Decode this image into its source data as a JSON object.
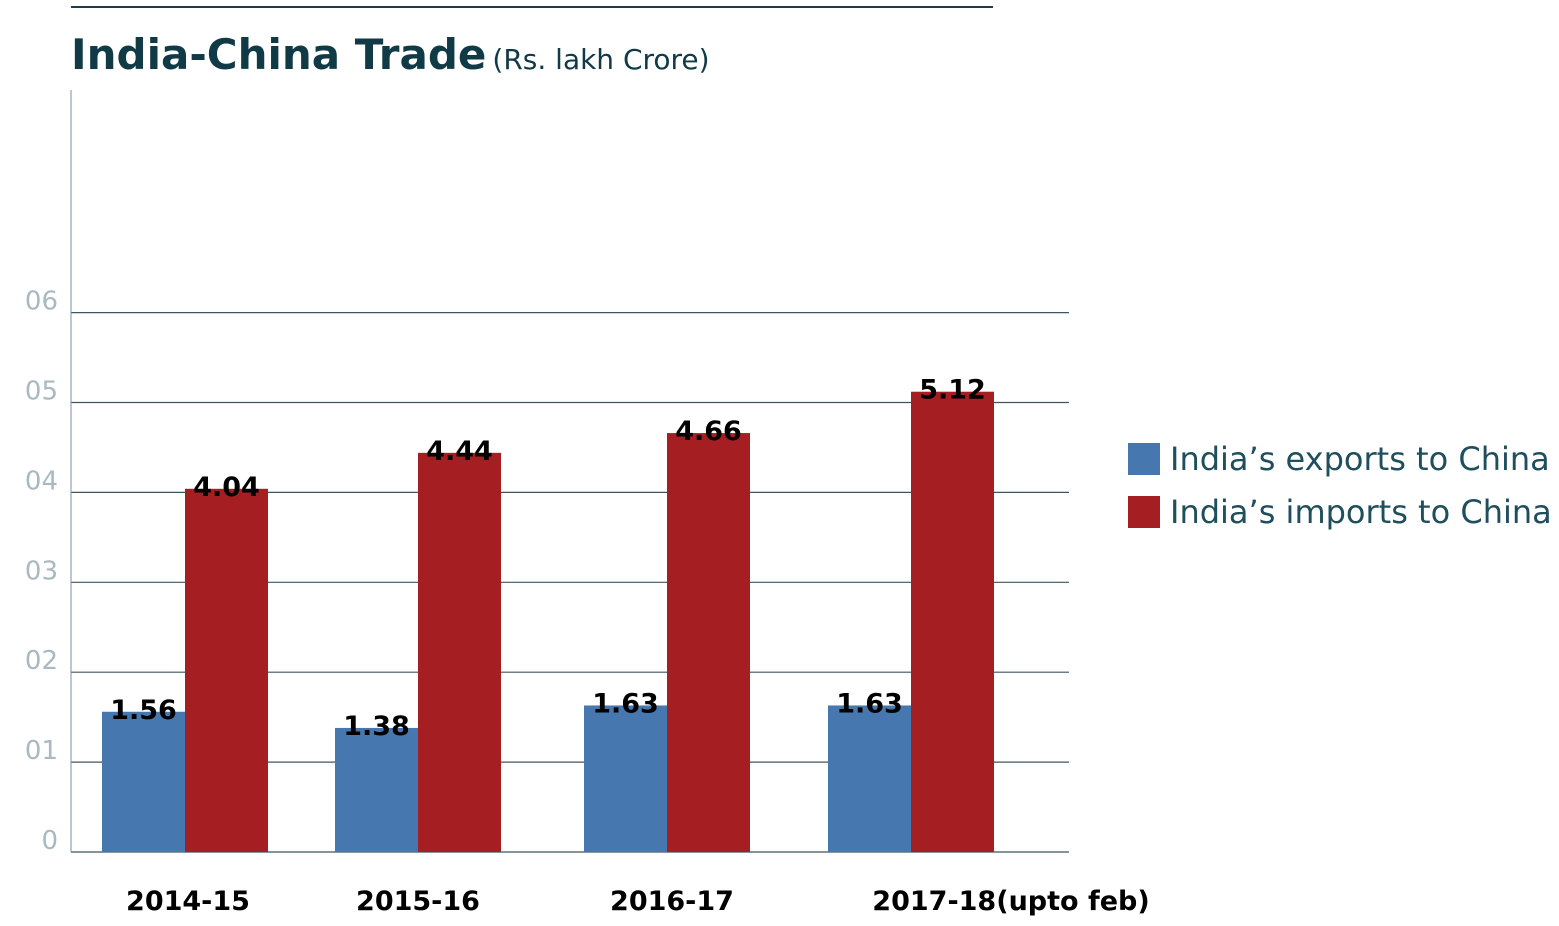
{
  "chart_data": {
    "type": "bar",
    "title": "India-China Trade",
    "subtitle": "(Rs. lakh Crore)",
    "categories": [
      "2014-15",
      "2015-16",
      "2016-17",
      "2017-18(upto feb)"
    ],
    "series": [
      {
        "name": "India’s exports to China",
        "color": "#4677ae",
        "values": [
          1.56,
          1.38,
          1.63,
          1.63
        ],
        "labels": [
          "1.56",
          "1.38",
          "1.63",
          "1.63"
        ]
      },
      {
        "name": "India’s imports to China",
        "color": "#a51e22",
        "values": [
          4.04,
          4.44,
          4.66,
          5.12
        ],
        "labels": [
          "4.04",
          "4.44",
          "4.66",
          "5.12"
        ]
      }
    ],
    "yticks": [
      0,
      1,
      2,
      3,
      4,
      5,
      6
    ],
    "ytick_labels": [
      "0",
      "01",
      "02",
      "03",
      "04",
      "05",
      "06"
    ],
    "ylim": [
      0,
      6
    ],
    "xlabel": "",
    "ylabel": "",
    "grid": true,
    "legend_position": "right"
  }
}
